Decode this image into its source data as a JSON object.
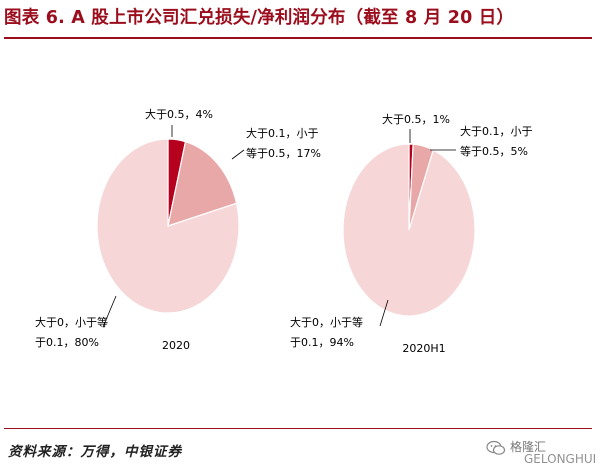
{
  "title": "图表 6. A 股上市公司汇兑损失/净利润分布（截至 8 月 20 日）",
  "source": "资料来源：万得，中银证券",
  "watermark": {
    "line1": "格隆汇",
    "line2": "GELONGHUI"
  },
  "colors": {
    "title": "#9b0d1c",
    "slice_high": "#b5001e",
    "slice_mid": "#e9a8a8",
    "slice_low": "#f6d6d6",
    "pie_edge": "#ffffff"
  },
  "chart_data": [
    {
      "type": "pie",
      "xlabel": "2020",
      "slices": [
        {
          "label_lines": [
            "大于0.5，4%"
          ],
          "value": 4,
          "color": "#b5001e"
        },
        {
          "label_lines": [
            "大于0.1，小于",
            "等于0.5，17%"
          ],
          "value": 17,
          "color": "#e9a8a8"
        },
        {
          "label_lines": [
            "大于0，小于等",
            "于0.1，80%"
          ],
          "value": 80,
          "color": "#f6d6d6"
        }
      ]
    },
    {
      "type": "pie",
      "xlabel": "2020H1",
      "slices": [
        {
          "label_lines": [
            "大于0.5，1%"
          ],
          "value": 1,
          "color": "#b5001e"
        },
        {
          "label_lines": [
            "大于0.1，小于",
            "等于0.5，5%"
          ],
          "value": 5,
          "color": "#e9a8a8"
        },
        {
          "label_lines": [
            "大于0，小于等",
            "于0.1，94%"
          ],
          "value": 94,
          "color": "#f6d6d6"
        }
      ]
    }
  ]
}
